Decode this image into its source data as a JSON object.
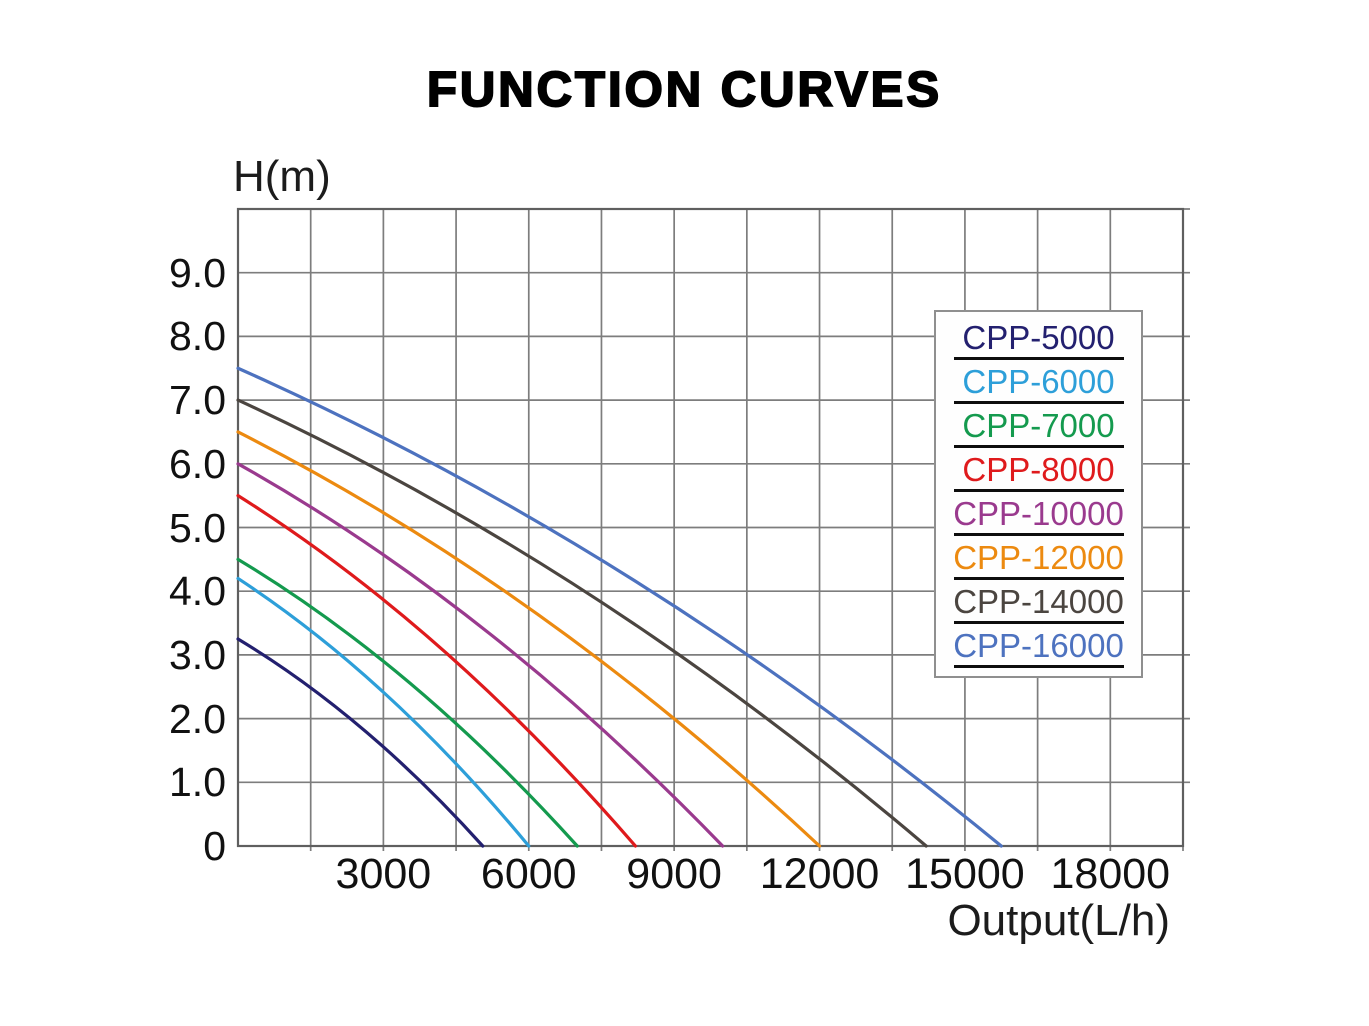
{
  "chart_data": {
    "type": "line",
    "title": "FUNCTION CURVES",
    "xlabel": "Output(L/h)",
    "ylabel": "H(m)",
    "xlim": [
      0,
      19500
    ],
    "ylim": [
      0,
      10
    ],
    "x_grid_step": 1500,
    "y_grid_step": 1,
    "grid": true,
    "legend_position": "upper-right",
    "x_tick_values": [
      3000,
      6000,
      9000,
      12000,
      15000,
      18000
    ],
    "x_tick_labels": [
      "3000",
      "6000",
      "9000",
      "12000",
      "15000",
      "18000"
    ],
    "y_tick_values": [
      9,
      8,
      7,
      6,
      5,
      4,
      3,
      2,
      1,
      0
    ],
    "y_tick_labels": [
      "9.0",
      "8.0",
      "7.0",
      "6.0",
      "5.0",
      "4.0",
      "3.0",
      "2.0",
      "1.0",
      "0"
    ],
    "series": [
      {
        "name": "CPP-5000",
        "color": "#23206f",
        "shutoff_head_m": 3.25,
        "max_flow_lh": 5050,
        "points": [
          [
            0,
            3.25
          ],
          [
            1263,
            2.61
          ],
          [
            2525,
            1.87
          ],
          [
            3788,
            1.0
          ],
          [
            5050,
            0
          ]
        ]
      },
      {
        "name": "CPP-6000",
        "color": "#2d9fd9",
        "shutoff_head_m": 4.2,
        "max_flow_lh": 6000,
        "points": [
          [
            0,
            4.2
          ],
          [
            1500,
            3.37
          ],
          [
            3000,
            2.42
          ],
          [
            4500,
            1.29
          ],
          [
            6000,
            0
          ]
        ]
      },
      {
        "name": "CPP-7000",
        "color": "#149a4e",
        "shutoff_head_m": 4.5,
        "max_flow_lh": 7000,
        "points": [
          [
            0,
            4.5
          ],
          [
            1750,
            3.61
          ],
          [
            3500,
            2.59
          ],
          [
            5250,
            1.38
          ],
          [
            7000,
            0
          ]
        ]
      },
      {
        "name": "CPP-8000",
        "color": "#df1a1c",
        "shutoff_head_m": 5.5,
        "max_flow_lh": 8200,
        "points": [
          [
            0,
            5.5
          ],
          [
            2050,
            4.42
          ],
          [
            4100,
            3.16
          ],
          [
            6150,
            1.69
          ],
          [
            8200,
            0
          ]
        ]
      },
      {
        "name": "CPP-10000",
        "color": "#9a3a8e",
        "shutoff_head_m": 6.0,
        "max_flow_lh": 10000,
        "points": [
          [
            0,
            6.0
          ],
          [
            2500,
            4.82
          ],
          [
            5000,
            3.45
          ],
          [
            7500,
            1.84
          ],
          [
            10000,
            0
          ]
        ]
      },
      {
        "name": "CPP-12000",
        "color": "#ec8a10",
        "shutoff_head_m": 6.5,
        "max_flow_lh": 12000,
        "points": [
          [
            0,
            6.5
          ],
          [
            3000,
            5.22
          ],
          [
            6000,
            3.74
          ],
          [
            9000,
            2.0
          ],
          [
            12000,
            0
          ]
        ]
      },
      {
        "name": "CPP-14000",
        "color": "#4b4540",
        "shutoff_head_m": 7.0,
        "max_flow_lh": 14200,
        "points": [
          [
            0,
            7.0
          ],
          [
            3550,
            5.62
          ],
          [
            7100,
            4.03
          ],
          [
            10650,
            2.15
          ],
          [
            14200,
            0
          ]
        ]
      },
      {
        "name": "CPP-16000",
        "color": "#4d72bf",
        "shutoff_head_m": 7.5,
        "max_flow_lh": 15750,
        "points": [
          [
            0,
            7.5
          ],
          [
            3940,
            6.0
          ],
          [
            7880,
            4.3
          ],
          [
            11810,
            2.3
          ],
          [
            15750,
            0
          ]
        ]
      }
    ]
  }
}
